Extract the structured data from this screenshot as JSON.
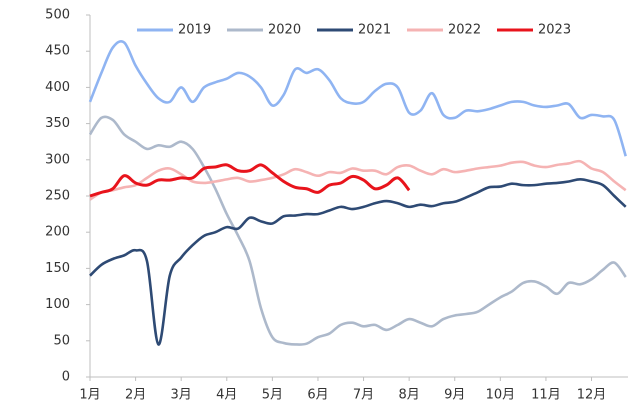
{
  "chart_data": {
    "type": "line",
    "x": [
      1,
      1.25,
      1.5,
      1.75,
      2,
      2.25,
      2.5,
      2.75,
      3,
      3.25,
      3.5,
      3.75,
      4,
      4.25,
      4.5,
      4.75,
      5,
      5.25,
      5.5,
      5.75,
      6,
      6.25,
      6.5,
      6.75,
      7,
      7.25,
      7.5,
      7.75,
      8,
      8.25,
      8.5,
      8.75,
      9,
      9.25,
      9.5,
      9.75,
      10,
      10.25,
      10.5,
      10.75,
      11,
      11.25,
      11.5,
      11.75,
      12,
      12.25,
      12.5,
      12.75
    ],
    "series": [
      {
        "name": "2019",
        "color": "#8fb4f2",
        "values": [
          380,
          420,
          455,
          462,
          430,
          405,
          385,
          380,
          400,
          380,
          400,
          407,
          412,
          420,
          415,
          400,
          375,
          390,
          425,
          420,
          425,
          410,
          385,
          378,
          380,
          395,
          405,
          400,
          365,
          368,
          392,
          362,
          358,
          368,
          367,
          370,
          375,
          380,
          380,
          375,
          373,
          375,
          377,
          358,
          362,
          360,
          355,
          305
        ]
      },
      {
        "name": "2020",
        "color": "#adb9cb",
        "values": [
          335,
          358,
          355,
          335,
          325,
          315,
          320,
          318,
          325,
          315,
          290,
          260,
          225,
          195,
          160,
          95,
          55,
          47,
          45,
          46,
          55,
          60,
          72,
          75,
          70,
          72,
          65,
          72,
          80,
          75,
          70,
          80,
          85,
          87,
          90,
          100,
          110,
          118,
          130,
          132,
          125,
          115,
          130,
          128,
          135,
          148,
          158,
          138
        ]
      },
      {
        "name": "2021",
        "color": "#2e4a74",
        "values": [
          140,
          155,
          163,
          168,
          175,
          160,
          45,
          140,
          165,
          182,
          195,
          200,
          207,
          205,
          220,
          215,
          212,
          222,
          223,
          225,
          225,
          230,
          235,
          232,
          235,
          240,
          243,
          240,
          235,
          238,
          236,
          240,
          242,
          248,
          255,
          262,
          263,
          267,
          265,
          265,
          267,
          268,
          270,
          273,
          270,
          265,
          250,
          235
        ]
      },
      {
        "name": "2022",
        "color": "#f5b3b3",
        "values": [
          245,
          255,
          258,
          262,
          265,
          275,
          285,
          288,
          280,
          270,
          268,
          270,
          273,
          275,
          270,
          272,
          275,
          280,
          287,
          283,
          278,
          283,
          282,
          288,
          285,
          285,
          280,
          290,
          292,
          285,
          280,
          287,
          283,
          285,
          288,
          290,
          292,
          296,
          297,
          292,
          290,
          293,
          295,
          298,
          288,
          283,
          270,
          258
        ]
      },
      {
        "name": "2023",
        "color": "#e8141c",
        "values": [
          250,
          255,
          260,
          278,
          268,
          265,
          272,
          272,
          275,
          275,
          288,
          290,
          293,
          285,
          285,
          293,
          282,
          270,
          262,
          260,
          255,
          265,
          268,
          277,
          272,
          260,
          265,
          275,
          258,
          null,
          null,
          null,
          null,
          null,
          null,
          null,
          null,
          null,
          null,
          null,
          null,
          null,
          null,
          null,
          null,
          null,
          null,
          null
        ]
      }
    ],
    "xlim": [
      1,
      12.8
    ],
    "xticks": [
      {
        "value": 1,
        "label": "1月"
      },
      {
        "value": 2,
        "label": "2月"
      },
      {
        "value": 3,
        "label": "3月"
      },
      {
        "value": 4,
        "label": "4月"
      },
      {
        "value": 5,
        "label": "5月"
      },
      {
        "value": 6,
        "label": "6月"
      },
      {
        "value": 7,
        "label": "7月"
      },
      {
        "value": 8,
        "label": "8月"
      },
      {
        "value": 9,
        "label": "9月"
      },
      {
        "value": 10,
        "label": "10月"
      },
      {
        "value": 11,
        "label": "11月"
      },
      {
        "value": 12,
        "label": "12月"
      }
    ],
    "ylim": [
      0,
      500
    ],
    "yticks": [
      0,
      50,
      100,
      150,
      200,
      250,
      300,
      350,
      400,
      450,
      500
    ],
    "legend": "top"
  }
}
